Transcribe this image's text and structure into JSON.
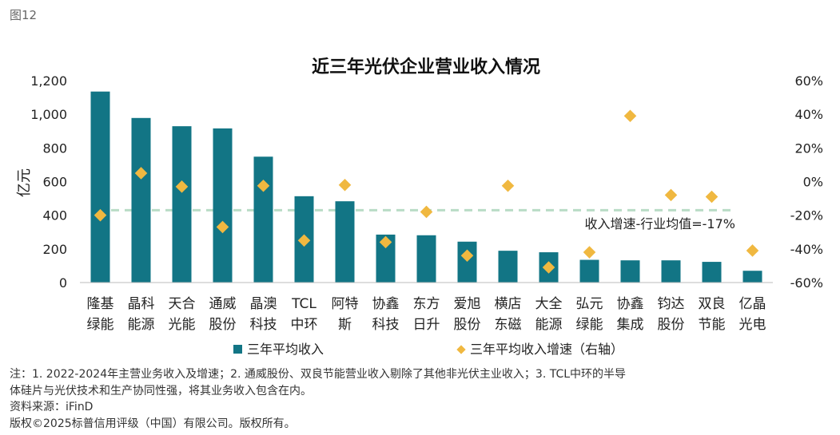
{
  "figure_label": "图12",
  "chart_data": {
    "type": "bar+scatter",
    "title": "近三年光伏企业营业收入情况",
    "ylabel": "亿元",
    "ylim": [
      0,
      1200
    ],
    "y_ticks": [
      "1,200",
      "1,000",
      "800",
      "600",
      "400",
      "200",
      "0"
    ],
    "y2lim": [
      -0.6,
      0.6
    ],
    "y2_ticks": [
      "60%",
      "40%",
      "20%",
      "0%",
      "-20%",
      "-40%",
      "-60%"
    ],
    "categories": [
      [
        "隆基",
        "绿能"
      ],
      [
        "晶科",
        "能源"
      ],
      [
        "天合",
        "光能"
      ],
      [
        "通威",
        "股份"
      ],
      [
        "晶澳",
        "科技"
      ],
      [
        "TCL",
        "中环"
      ],
      [
        "阿特",
        "斯"
      ],
      [
        "协鑫",
        "科技"
      ],
      [
        "东方",
        "日升"
      ],
      [
        "爱旭",
        "股份"
      ],
      [
        "横店",
        "东磁"
      ],
      [
        "大全",
        "能源"
      ],
      [
        "弘元",
        "绿能"
      ],
      [
        "协鑫",
        "集成"
      ],
      [
        "钧达",
        "股份"
      ],
      [
        "双良",
        "节能"
      ],
      [
        "亿晶",
        "光电"
      ]
    ],
    "series": [
      {
        "name": "三年平均收入",
        "type": "bar",
        "axis": "left",
        "values": [
          1135,
          978,
          929,
          916,
          748,
          513,
          483,
          285,
          281,
          243,
          189,
          180,
          135,
          132,
          132,
          123,
          70
        ]
      },
      {
        "name": "三年平均收入增速（右轴）",
        "type": "scatter",
        "axis": "right",
        "values": [
          -0.2,
          0.05,
          -0.03,
          -0.27,
          -0.025,
          -0.35,
          -0.02,
          -0.36,
          -0.18,
          -0.44,
          -0.025,
          -0.51,
          -0.42,
          0.39,
          -0.08,
          -0.09,
          -0.41
        ]
      }
    ],
    "reference_line": {
      "value": -0.17,
      "axis": "right",
      "label": "收入增速-行业均值=-17%"
    },
    "colors": {
      "bar": "#127585",
      "marker": "#F0B840",
      "refline": "#B9DCC6",
      "axis": "#BBBBBB"
    }
  },
  "notes": [
    "注：1. 2022-2024年主营业务收入及增速；2. 通威股份、双良节能营业收入剔除了其他非光伏主业收入；3. TCL中环的半导",
    "体硅片与光伏技术和生产协同性强，将其业务收入包含在内。",
    "资料来源：iFinD",
    "版权©2025标普信用评级（中国）有限公司。版权所有。"
  ]
}
